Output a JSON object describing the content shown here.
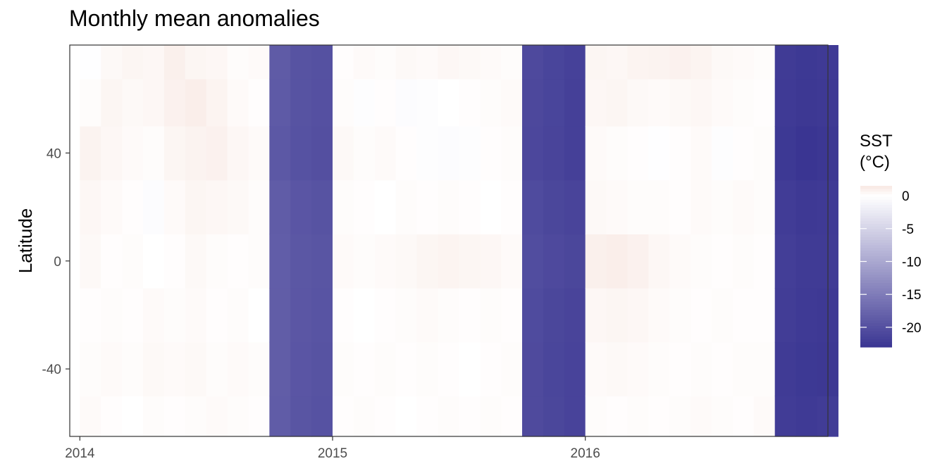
{
  "chart_data": {
    "type": "heatmap",
    "title": "Monthly mean anomalies",
    "xlabel": "",
    "ylabel": "Latitude",
    "x_ticks": [
      "2014",
      "2015",
      "2016"
    ],
    "x_tick_values": [
      2014,
      2015,
      2016
    ],
    "xlim": [
      2013.96,
      2016.96
    ],
    "y_ticks": [
      "-40",
      "0",
      "40"
    ],
    "y_tick_values": [
      -40,
      0,
      40
    ],
    "ylim": [
      -65,
      80
    ],
    "x": [
      "2014-01",
      "2014-02",
      "2014-03",
      "2014-04",
      "2014-05",
      "2014-06",
      "2014-07",
      "2014-08",
      "2014-09",
      "2014-10",
      "2014-11",
      "2014-12",
      "2015-01",
      "2015-02",
      "2015-03",
      "2015-04",
      "2015-05",
      "2015-06",
      "2015-07",
      "2015-08",
      "2015-09",
      "2015-10",
      "2015-11",
      "2015-12",
      "2016-01",
      "2016-02",
      "2016-03",
      "2016-04",
      "2016-05",
      "2016-06",
      "2016-07",
      "2016-08",
      "2016-09",
      "2016-10",
      "2016-11",
      "2016-12"
    ],
    "y": [
      -60,
      -40,
      -20,
      0,
      20,
      40,
      60,
      75
    ],
    "z": [
      [
        0.3,
        0.2,
        0.1,
        0.4,
        0.5,
        0.8,
        0.2,
        -0.1
      ],
      [
        0.1,
        0.3,
        0.2,
        0.1,
        0.3,
        0.5,
        0.6,
        0.4
      ],
      [
        0.0,
        0.2,
        0.1,
        0.2,
        0.1,
        0.3,
        0.4,
        0.6
      ],
      [
        0.2,
        0.4,
        0.3,
        0.0,
        -0.3,
        0.2,
        0.5,
        0.5
      ],
      [
        0.1,
        0.3,
        0.2,
        0.1,
        0.3,
        0.6,
        0.9,
        1.0
      ],
      [
        0.2,
        0.4,
        0.3,
        0.4,
        0.6,
        0.8,
        1.1,
        0.6
      ],
      [
        0.3,
        0.2,
        0.1,
        0.2,
        0.5,
        0.9,
        0.7,
        0.5
      ],
      [
        0.2,
        0.3,
        0.2,
        0.1,
        0.4,
        0.5,
        0.3,
        0.2
      ],
      [
        0.1,
        0.2,
        0.0,
        0.2,
        0.2,
        0.3,
        0.1,
        0.3
      ],
      [
        -18.6,
        -18.5,
        -18.5,
        -18.4,
        -18.6,
        -19.0,
        -18.8,
        -18.7
      ],
      [
        -19.4,
        -19.3,
        -19.2,
        -19.1,
        -19.3,
        -19.7,
        -19.6,
        -19.6
      ],
      [
        -19.7,
        -19.6,
        -19.5,
        -19.4,
        -19.6,
        -20.0,
        -19.9,
        -19.8
      ],
      [
        0.1,
        0.2,
        0.1,
        0.3,
        0.2,
        0.4,
        0.2,
        0.1
      ],
      [
        0.2,
        0.1,
        0.0,
        0.2,
        0.1,
        0.2,
        -0.2,
        0.3
      ],
      [
        0.1,
        0.2,
        0.1,
        0.3,
        0.0,
        0.3,
        0.1,
        0.2
      ],
      [
        0.0,
        0.1,
        0.2,
        0.4,
        0.2,
        0.1,
        -0.3,
        0.4
      ],
      [
        0.1,
        0.2,
        0.3,
        0.6,
        0.1,
        -0.2,
        -0.2,
        0.3
      ],
      [
        0.2,
        0.1,
        0.2,
        0.7,
        0.2,
        -0.3,
        0.0,
        0.5
      ],
      [
        0.1,
        0.0,
        0.1,
        0.6,
        0.1,
        -0.2,
        0.1,
        0.4
      ],
      [
        0.2,
        0.1,
        0.2,
        0.5,
        0.0,
        0.1,
        0.2,
        0.3
      ],
      [
        0.1,
        0.2,
        0.1,
        0.3,
        0.1,
        0.2,
        0.3,
        0.2
      ],
      [
        -20.6,
        -20.6,
        -20.5,
        -20.3,
        -20.5,
        -20.9,
        -20.8,
        -20.7
      ],
      [
        -21.0,
        -21.1,
        -21.0,
        -20.7,
        -21.0,
        -21.3,
        -21.2,
        -21.2
      ],
      [
        -21.4,
        -21.4,
        -21.3,
        -21.0,
        -21.3,
        -21.7,
        -21.7,
        -21.6
      ],
      [
        0.2,
        0.3,
        0.5,
        1.0,
        0.4,
        0.3,
        0.5,
        0.6
      ],
      [
        0.1,
        0.4,
        0.6,
        1.1,
        0.3,
        0.2,
        0.6,
        0.5
      ],
      [
        0.2,
        0.3,
        0.5,
        0.9,
        0.2,
        0.1,
        0.4,
        0.7
      ],
      [
        0.1,
        0.2,
        0.3,
        0.5,
        0.2,
        -0.1,
        0.3,
        0.8
      ],
      [
        0.2,
        0.1,
        0.2,
        0.3,
        0.1,
        0.1,
        0.4,
        0.9
      ],
      [
        0.3,
        0.2,
        0.1,
        0.2,
        0.3,
        0.3,
        0.5,
        0.7
      ],
      [
        0.2,
        0.1,
        0.2,
        0.1,
        0.2,
        -0.2,
        0.3,
        0.4
      ],
      [
        0.1,
        0.2,
        0.1,
        0.2,
        0.3,
        0.1,
        0.2,
        0.3
      ],
      [
        0.3,
        0.2,
        0.1,
        0.1,
        0.2,
        0.2,
        0.1,
        0.2
      ],
      [
        -22.2,
        -22.3,
        -22.1,
        -22.0,
        -22.2,
        -22.6,
        -22.4,
        -22.3
      ],
      [
        -22.4,
        -22.6,
        -22.4,
        -22.3,
        -22.5,
        -23.0,
        -22.7,
        -22.6
      ],
      [
        -22.2,
        -22.7,
        -22.5,
        -22.3,
        -22.4,
        -22.8,
        -22.5,
        -22.4
      ]
    ],
    "colorbar": {
      "title_lines": [
        "SST",
        "(°C)"
      ],
      "ticks": [
        "0",
        "-5",
        "-10",
        "-15",
        "-20"
      ],
      "tick_values": [
        0,
        -5,
        -10,
        -15,
        -20
      ],
      "range": [
        -23,
        1.5
      ],
      "colors": {
        "low": "#3a3592",
        "mid": "#ffffff",
        "high": "#f8e8e2"
      }
    },
    "grid": false,
    "legend_position": "right"
  },
  "colors": {
    "panel_border": "#333333",
    "tick_text": "#4d4d4d",
    "tick_mark": "#333333"
  }
}
